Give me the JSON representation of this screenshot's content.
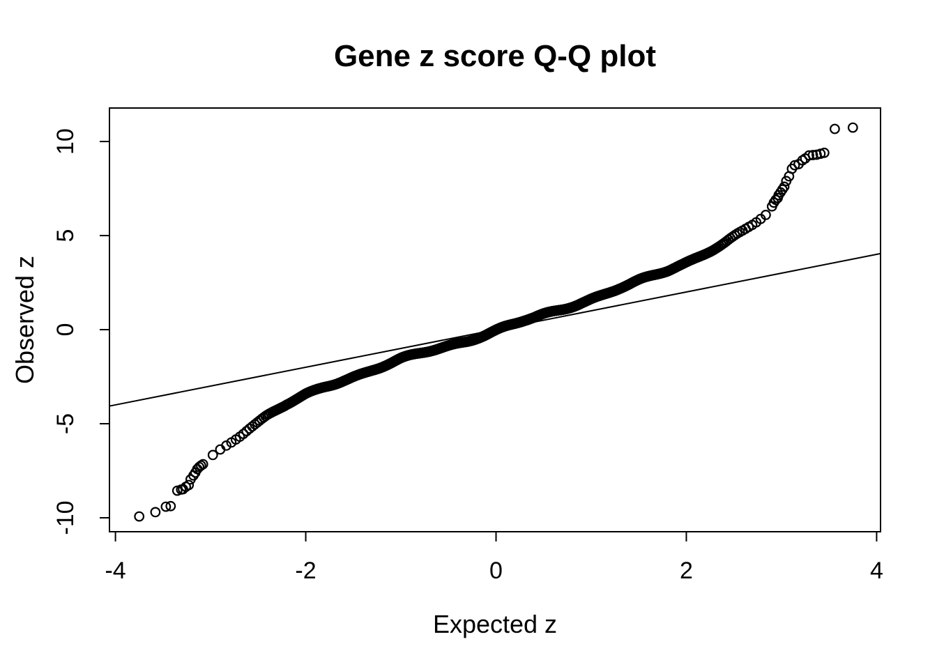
{
  "figure": {
    "background_color": "#ffffff",
    "foreground_color": "#000000"
  },
  "chart_data": {
    "type": "scatter",
    "subtype": "qq_plot",
    "title": "Gene z score Q-Q plot",
    "xlabel": "Expected z",
    "ylabel": "Observed z",
    "x_ticks": [
      -4,
      -2,
      0,
      2,
      4
    ],
    "y_ticks": [
      -10,
      -5,
      0,
      5,
      10
    ],
    "xlim": [
      -4.063,
      4.041
    ],
    "ylim": [
      -10.74,
      11.78
    ],
    "grid": false,
    "legend": "none",
    "point_style": {
      "shape": "open-circle",
      "color": "#000000",
      "radius_px": 6.3
    },
    "reference_line": {
      "slope": 1.0,
      "intercept": 0.0,
      "color": "#000000"
    },
    "dense_curve": {
      "n_points": 2400,
      "expected_range": [
        -3.06,
        2.89
      ],
      "anchors_expected": [
        -3.06,
        -3.0,
        -2.9,
        -2.8,
        -2.7,
        -2.6,
        -2.5,
        -2.4,
        -2.3,
        -2.2,
        -2.1,
        -2.0,
        -1.9,
        -1.8,
        -1.7,
        -1.6,
        -1.5,
        -1.4,
        -1.3,
        -1.2,
        -1.1,
        -1.0,
        -0.9,
        -0.8,
        -0.7,
        -0.6,
        -0.5,
        -0.4,
        -0.3,
        -0.2,
        -0.1,
        0.0,
        0.1,
        0.2,
        0.3,
        0.4,
        0.5,
        0.6,
        0.7,
        0.8,
        0.9,
        1.0,
        1.1,
        1.2,
        1.3,
        1.4,
        1.5,
        1.6,
        1.7,
        1.8,
        1.9,
        2.0,
        2.1,
        2.2,
        2.3,
        2.4,
        2.5,
        2.6,
        2.7,
        2.8,
        2.89
      ],
      "anchors_observed": [
        -7.0,
        -6.8,
        -6.4,
        -6.0,
        -5.6,
        -5.2,
        -4.88,
        -4.55,
        -4.28,
        -4.0,
        -3.75,
        -3.5,
        -3.28,
        -3.05,
        -2.85,
        -2.65,
        -2.47,
        -2.3,
        -2.12,
        -1.95,
        -1.78,
        -1.6,
        -1.45,
        -1.3,
        -1.15,
        -1.0,
        -0.85,
        -0.7,
        -0.55,
        -0.38,
        -0.22,
        -0.05,
        0.12,
        0.28,
        0.45,
        0.6,
        0.78,
        0.95,
        1.12,
        1.3,
        1.48,
        1.65,
        1.82,
        2.0,
        2.18,
        2.35,
        2.55,
        2.75,
        2.95,
        3.15,
        3.38,
        3.6,
        3.85,
        4.1,
        4.35,
        4.6,
        4.9,
        5.2,
        5.55,
        5.95,
        6.3
      ]
    },
    "tail_points_low": [
      [
        -3.75,
        -9.93
      ],
      [
        -3.58,
        -9.7
      ],
      [
        -3.47,
        -9.41
      ],
      [
        -3.42,
        -9.38
      ],
      [
        -3.35,
        -8.56
      ],
      [
        -3.31,
        -8.5
      ],
      [
        -3.29,
        -8.48
      ],
      [
        -3.26,
        -8.35
      ],
      [
        -3.23,
        -8.26
      ],
      [
        -3.21,
        -7.96
      ],
      [
        -3.18,
        -7.75
      ],
      [
        -3.16,
        -7.6
      ],
      [
        -3.14,
        -7.41
      ],
      [
        -3.12,
        -7.3
      ],
      [
        -3.1,
        -7.22
      ],
      [
        -3.08,
        -7.15
      ]
    ],
    "tail_points_high": [
      [
        2.9,
        6.55
      ],
      [
        2.92,
        6.75
      ],
      [
        2.94,
        6.9
      ],
      [
        2.96,
        7.0
      ],
      [
        2.97,
        7.15
      ],
      [
        2.99,
        7.3
      ],
      [
        3.01,
        7.45
      ],
      [
        3.03,
        7.6
      ],
      [
        3.05,
        7.9
      ],
      [
        3.08,
        8.15
      ],
      [
        3.11,
        8.55
      ],
      [
        3.14,
        8.74
      ],
      [
        3.18,
        8.8
      ],
      [
        3.22,
        9.0
      ],
      [
        3.25,
        9.1
      ],
      [
        3.29,
        9.26
      ],
      [
        3.33,
        9.28
      ],
      [
        3.37,
        9.3
      ],
      [
        3.41,
        9.35
      ],
      [
        3.45,
        9.4
      ],
      [
        3.56,
        10.67
      ],
      [
        3.75,
        10.74
      ]
    ]
  }
}
